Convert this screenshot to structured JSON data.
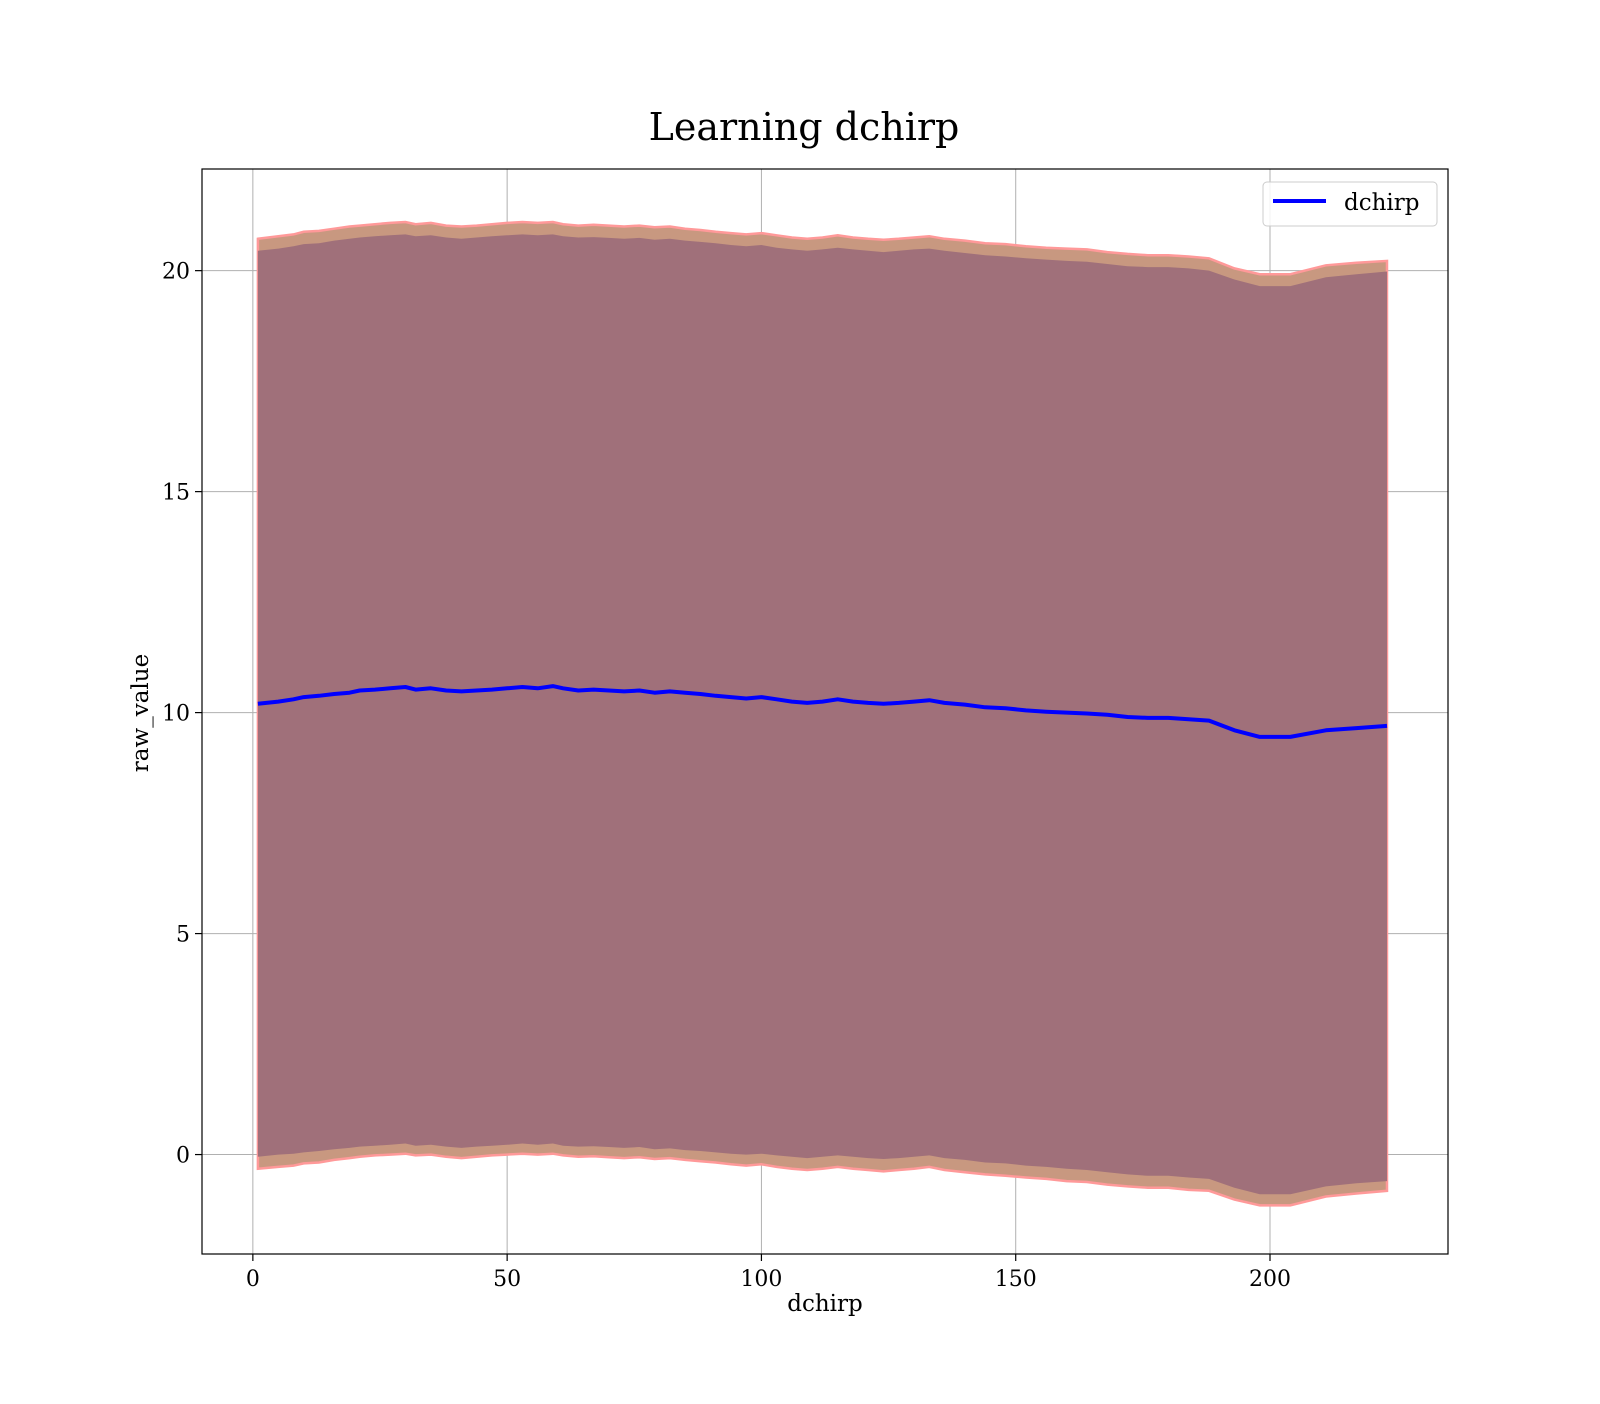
{
  "chart_data": {
    "type": "area",
    "title": "Learning dchirp",
    "xlabel": "dchirp",
    "ylabel": "raw_value",
    "xlim": [
      -10,
      235
    ],
    "ylim": [
      -2.25,
      22.3
    ],
    "x_ticks": [
      0,
      50,
      100,
      150,
      200
    ],
    "y_ticks": [
      0,
      5,
      10,
      15,
      20
    ],
    "x_tick_labels": [
      "0",
      "50",
      "100",
      "150",
      "200"
    ],
    "y_tick_labels": [
      "0",
      "5",
      "10",
      "15",
      "20"
    ],
    "grid": true,
    "legend": {
      "position": "top-right",
      "entries": [
        "dchirp"
      ]
    },
    "colors": {
      "mean_line": "#0000ff",
      "inner_band": "#a0707a",
      "outer_band": "#c89880",
      "band_edge": "#ff9999",
      "grid": "#b0b0b0"
    },
    "series": [
      {
        "name": "dchirp",
        "x": [
          1,
          5,
          8,
          10,
          13,
          16,
          19,
          21,
          24,
          27,
          30,
          32,
          35,
          38,
          41,
          44,
          47,
          50,
          53,
          56,
          59,
          61,
          64,
          67,
          70,
          73,
          76,
          79,
          82,
          85,
          88,
          91,
          94,
          97,
          100,
          103,
          106,
          109,
          112,
          115,
          118,
          121,
          124,
          127,
          130,
          133,
          136,
          140,
          144,
          148,
          152,
          156,
          160,
          164,
          168,
          172,
          176,
          180,
          184,
          188,
          193,
          198,
          204,
          211,
          217,
          223
        ],
        "mean": [
          10.2,
          10.25,
          10.3,
          10.35,
          10.38,
          10.42,
          10.45,
          10.5,
          10.52,
          10.55,
          10.58,
          10.52,
          10.55,
          10.5,
          10.48,
          10.5,
          10.52,
          10.55,
          10.58,
          10.55,
          10.6,
          10.55,
          10.5,
          10.52,
          10.5,
          10.48,
          10.5,
          10.45,
          10.48,
          10.45,
          10.42,
          10.38,
          10.35,
          10.32,
          10.35,
          10.3,
          10.25,
          10.22,
          10.25,
          10.3,
          10.25,
          10.22,
          10.2,
          10.22,
          10.25,
          10.28,
          10.22,
          10.18,
          10.12,
          10.1,
          10.05,
          10.02,
          10.0,
          9.98,
          9.95,
          9.9,
          9.88,
          9.88,
          9.85,
          9.82,
          9.6,
          9.45,
          9.45,
          9.6,
          9.65,
          9.7
        ],
        "band_inner_upper": [
          20.45,
          20.5,
          20.55,
          20.6,
          20.62,
          20.68,
          20.72,
          20.75,
          20.78,
          20.8,
          20.82,
          20.78,
          20.8,
          20.75,
          20.72,
          20.75,
          20.78,
          20.8,
          20.82,
          20.8,
          20.82,
          20.78,
          20.75,
          20.76,
          20.74,
          20.72,
          20.74,
          20.7,
          20.72,
          20.68,
          20.65,
          20.62,
          20.58,
          20.55,
          20.58,
          20.52,
          20.48,
          20.45,
          20.48,
          20.52,
          20.48,
          20.45,
          20.42,
          20.45,
          20.48,
          20.5,
          20.45,
          20.4,
          20.35,
          20.32,
          20.28,
          20.25,
          20.22,
          20.2,
          20.15,
          20.1,
          20.08,
          20.08,
          20.05,
          20.0,
          19.8,
          19.65,
          19.65,
          19.85,
          19.92,
          19.98
        ],
        "band_outer_upper": [
          20.72,
          20.78,
          20.82,
          20.88,
          20.9,
          20.95,
          21.0,
          21.02,
          21.05,
          21.08,
          21.1,
          21.05,
          21.08,
          21.02,
          21.0,
          21.02,
          21.05,
          21.08,
          21.1,
          21.08,
          21.1,
          21.05,
          21.02,
          21.04,
          21.02,
          21.0,
          21.02,
          20.98,
          21.0,
          20.95,
          20.92,
          20.88,
          20.85,
          20.82,
          20.85,
          20.8,
          20.75,
          20.72,
          20.75,
          20.8,
          20.75,
          20.72,
          20.7,
          20.72,
          20.75,
          20.78,
          20.72,
          20.68,
          20.62,
          20.6,
          20.55,
          20.52,
          20.5,
          20.48,
          20.42,
          20.38,
          20.35,
          20.35,
          20.32,
          20.28,
          20.05,
          19.92,
          19.92,
          20.12,
          20.18,
          20.22
        ],
        "band_inner_lower": [
          -0.05,
          0.0,
          0.02,
          0.05,
          0.08,
          0.12,
          0.15,
          0.18,
          0.2,
          0.22,
          0.25,
          0.2,
          0.22,
          0.18,
          0.15,
          0.18,
          0.2,
          0.22,
          0.25,
          0.22,
          0.25,
          0.2,
          0.18,
          0.19,
          0.17,
          0.15,
          0.17,
          0.12,
          0.14,
          0.1,
          0.08,
          0.05,
          0.02,
          0.0,
          0.02,
          -0.02,
          -0.05,
          -0.08,
          -0.05,
          -0.02,
          -0.05,
          -0.08,
          -0.1,
          -0.08,
          -0.05,
          -0.02,
          -0.08,
          -0.12,
          -0.18,
          -0.2,
          -0.25,
          -0.28,
          -0.32,
          -0.35,
          -0.4,
          -0.45,
          -0.48,
          -0.48,
          -0.52,
          -0.55,
          -0.75,
          -0.9,
          -0.9,
          -0.72,
          -0.65,
          -0.6
        ],
        "band_outer_lower": [
          -0.32,
          -0.28,
          -0.25,
          -0.2,
          -0.18,
          -0.12,
          -0.08,
          -0.05,
          -0.02,
          0.0,
          0.02,
          -0.02,
          0.0,
          -0.05,
          -0.08,
          -0.05,
          -0.02,
          0.0,
          0.02,
          0.0,
          0.02,
          -0.02,
          -0.05,
          -0.04,
          -0.06,
          -0.08,
          -0.06,
          -0.1,
          -0.08,
          -0.12,
          -0.15,
          -0.18,
          -0.22,
          -0.25,
          -0.22,
          -0.28,
          -0.32,
          -0.35,
          -0.32,
          -0.28,
          -0.32,
          -0.35,
          -0.38,
          -0.35,
          -0.32,
          -0.28,
          -0.35,
          -0.4,
          -0.45,
          -0.48,
          -0.52,
          -0.55,
          -0.6,
          -0.62,
          -0.68,
          -0.72,
          -0.75,
          -0.75,
          -0.8,
          -0.82,
          -1.02,
          -1.15,
          -1.15,
          -0.95,
          -0.88,
          -0.82
        ]
      }
    ]
  }
}
